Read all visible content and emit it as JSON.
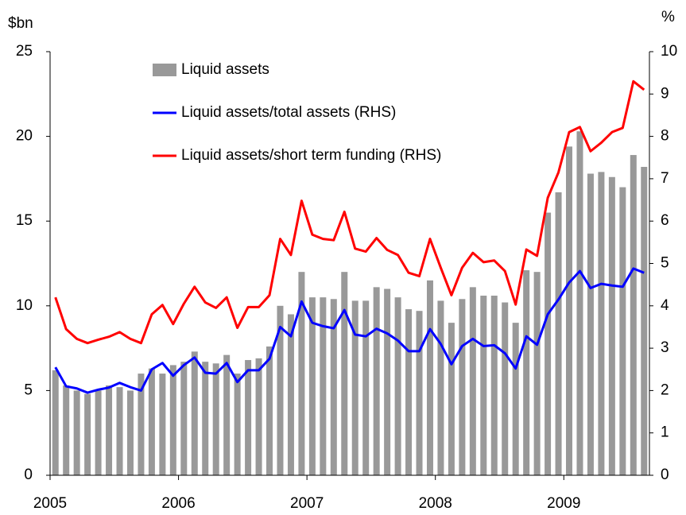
{
  "chart_data": {
    "type": "bar_line",
    "y_label": "$bn",
    "y2_label": "%",
    "categories": [
      "2005",
      null,
      null,
      null,
      null,
      null,
      null,
      null,
      null,
      null,
      null,
      null,
      "2006",
      null,
      null,
      null,
      null,
      null,
      null,
      null,
      null,
      null,
      null,
      null,
      "2007",
      null,
      null,
      null,
      null,
      null,
      null,
      null,
      null,
      null,
      null,
      null,
      "2008",
      null,
      null,
      null,
      null,
      null,
      null,
      null,
      null,
      null,
      null,
      null,
      "2009",
      null,
      null,
      null,
      null,
      null,
      null,
      null
    ],
    "series": [
      {
        "name": "Liquid assets",
        "color": "#999999",
        "kind": "bar",
        "values": [
          6.2,
          5.3,
          5.0,
          4.8,
          5.0,
          5.3,
          5.2,
          5.0,
          6.0,
          6.3,
          6.0,
          6.5,
          6.7,
          7.3,
          6.7,
          6.6,
          7.1,
          6.0,
          6.8,
          6.9,
          7.6,
          10.0,
          9.5,
          12.0,
          10.5,
          10.5,
          10.4,
          12.0,
          10.3,
          10.3,
          11.1,
          11.0,
          10.5,
          9.8,
          9.7,
          11.5,
          10.3,
          9.0,
          10.4,
          11.1,
          10.6,
          10.6,
          10.2,
          9.0,
          12.1,
          12.0,
          15.5,
          16.7,
          19.4,
          20.3,
          17.8,
          17.9,
          17.6,
          17.0,
          18.9,
          18.2
        ]
      },
      {
        "name": "Liquid assets/total assets (RHS)",
        "color": "#0000ff",
        "kind": "line",
        "axis": "y2",
        "values": [
          2.55,
          2.1,
          2.05,
          1.95,
          2.02,
          2.07,
          2.18,
          2.08,
          2.0,
          2.5,
          2.65,
          2.35,
          2.6,
          2.78,
          2.42,
          2.4,
          2.65,
          2.2,
          2.48,
          2.48,
          2.75,
          3.5,
          3.28,
          4.1,
          3.6,
          3.52,
          3.47,
          3.9,
          3.32,
          3.28,
          3.46,
          3.35,
          3.18,
          2.93,
          2.93,
          3.45,
          3.1,
          2.62,
          3.05,
          3.22,
          3.05,
          3.07,
          2.88,
          2.52,
          3.28,
          3.08,
          3.8,
          4.15,
          4.55,
          4.82,
          4.42,
          4.52,
          4.48,
          4.45,
          4.88,
          4.78
        ]
      },
      {
        "name": "Liquid assets/short term funding (RHS)",
        "color": "#ff0000",
        "kind": "line",
        "axis": "y2",
        "values": [
          4.2,
          3.45,
          3.22,
          3.12,
          3.2,
          3.27,
          3.38,
          3.22,
          3.12,
          3.8,
          4.02,
          3.57,
          4.05,
          4.45,
          4.08,
          3.95,
          4.2,
          3.48,
          3.97,
          3.97,
          4.25,
          5.58,
          5.2,
          6.48,
          5.68,
          5.58,
          5.55,
          6.22,
          5.35,
          5.28,
          5.6,
          5.32,
          5.2,
          4.78,
          4.7,
          5.58,
          4.9,
          4.25,
          4.9,
          5.25,
          5.03,
          5.07,
          4.82,
          4.03,
          5.33,
          5.18,
          6.55,
          7.15,
          8.1,
          8.22,
          7.65,
          7.85,
          8.1,
          8.2,
          9.3,
          9.1
        ]
      }
    ],
    "ylim": [
      0,
      25
    ],
    "yticks": [
      0,
      5,
      10,
      15,
      20,
      25
    ],
    "y2lim": [
      0,
      10
    ],
    "y2ticks": [
      0,
      1,
      2,
      3,
      4,
      5,
      6,
      7,
      8,
      9,
      10
    ],
    "grid": false
  }
}
